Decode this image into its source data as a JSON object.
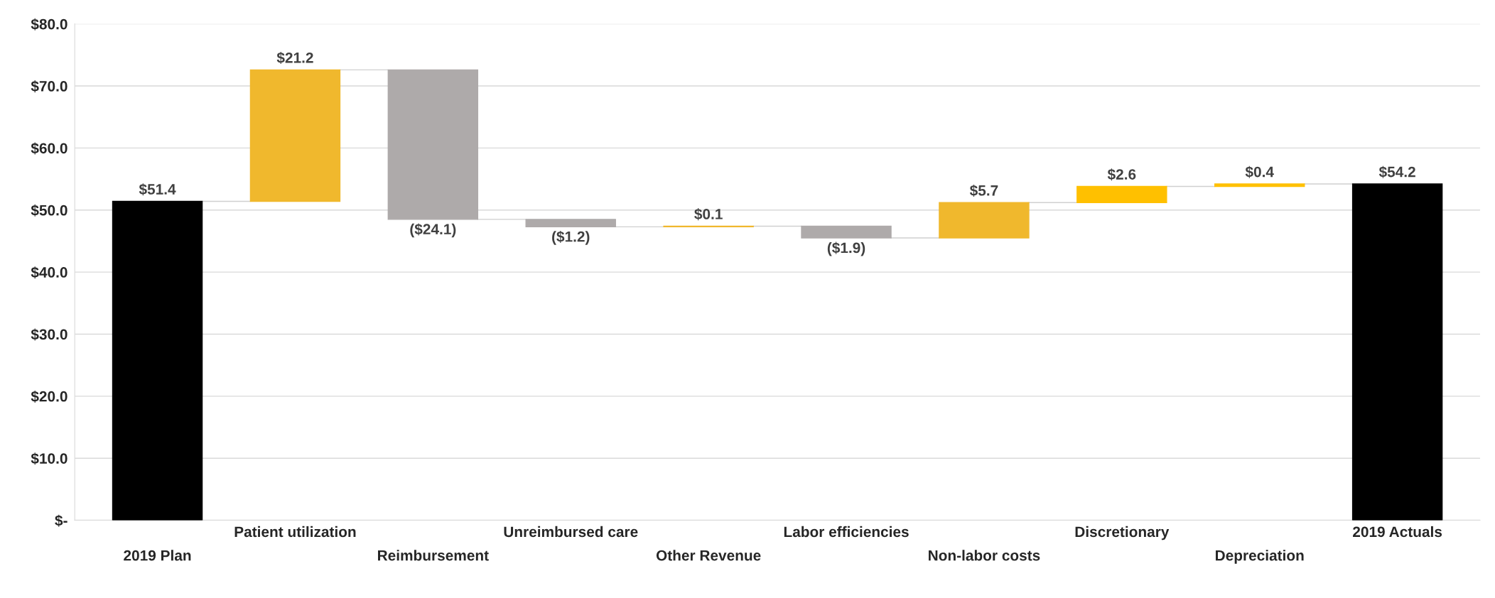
{
  "chart_data": {
    "type": "bar",
    "categories": [
      "2019 Plan",
      "Patient utilization",
      "Reimbursement",
      "Unreimbursed care",
      "Other Revenue",
      "Labor efficiencies",
      "Non-labor costs",
      "Discretionary",
      "Depreciation",
      "2019 Actuals"
    ],
    "values": [
      51.4,
      21.2,
      -24.1,
      -1.2,
      0.1,
      -1.9,
      5.7,
      2.6,
      0.4,
      54.2
    ],
    "base": [
      0,
      51.4,
      72.6,
      48.5,
      47.3,
      47.4,
      45.5,
      51.2,
      53.8,
      0
    ],
    "colors": [
      "#000000",
      "#f0b82d",
      "#aeaaaa",
      "#aeaaaa",
      "#f0b82d",
      "#aeaaaa",
      "#f0b82d",
      "#ffc000",
      "#ffc000",
      "#000000"
    ],
    "value_labels": [
      "$51.4",
      "$21.2",
      "($24.1)",
      "($1.2)",
      "$0.1",
      "($1.9)",
      "$5.7",
      "$2.6",
      "$0.4",
      "$54.2"
    ],
    "ylim": [
      0,
      80
    ],
    "yticks": [
      {
        "value": 0,
        "label": "$-"
      },
      {
        "value": 10,
        "label": "$10.0"
      },
      {
        "value": 20,
        "label": "$20.0"
      },
      {
        "value": 30,
        "label": "$30.0"
      },
      {
        "value": 40,
        "label": "$40.0"
      },
      {
        "value": 50,
        "label": "$50.0"
      },
      {
        "value": 60,
        "label": "$60.0"
      },
      {
        "value": 70,
        "label": "$70.0"
      },
      {
        "value": 80,
        "label": "$80.0"
      }
    ],
    "grid": "y"
  }
}
